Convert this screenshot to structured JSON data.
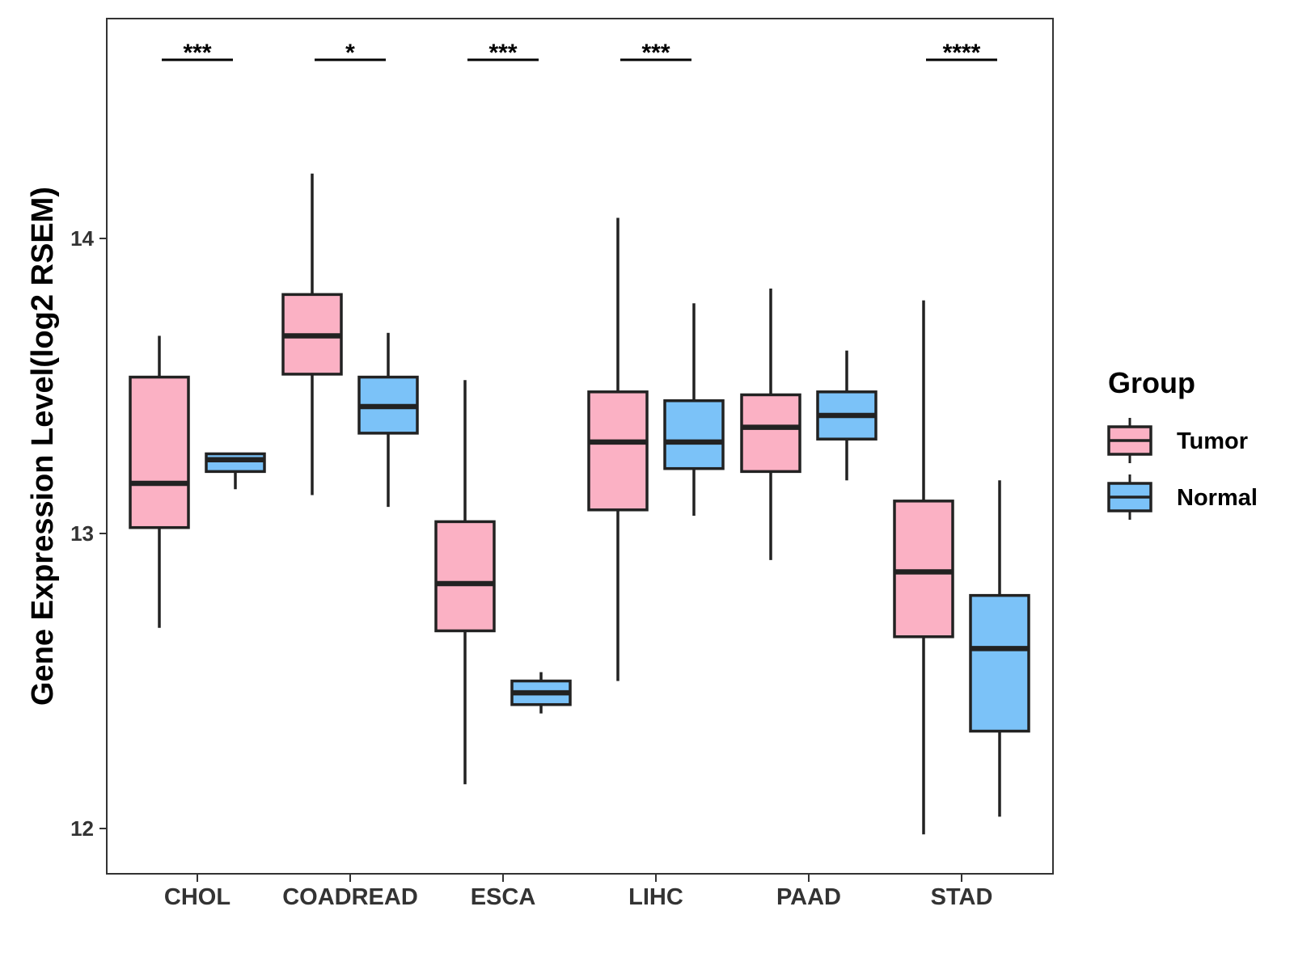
{
  "chart_data": {
    "type": "boxplot",
    "title": "",
    "xlabel": "",
    "ylabel": "Gene Expression Level(log2 RSEM)",
    "ylim": [
      11.85,
      14.75
    ],
    "yticks": [
      "12",
      "13",
      "14"
    ],
    "grid": false,
    "legend": {
      "title": "Group",
      "position": "right",
      "entries": [
        {
          "name": "Tumor",
          "color": "#FBB1C4"
        },
        {
          "name": "Normal",
          "color": "#7BC2F8"
        }
      ]
    },
    "categories": [
      "CHOL",
      "COADREAD",
      "ESCA",
      "LIHC",
      "PAAD",
      "STAD"
    ],
    "series": [
      {
        "name": "Tumor",
        "color": "#FBB1C4",
        "boxes": [
          {
            "min": 12.68,
            "q1": 13.02,
            "median": 13.17,
            "q3": 13.53,
            "max": 13.67
          },
          {
            "min": 13.13,
            "q1": 13.54,
            "median": 13.67,
            "q3": 13.81,
            "max": 14.22
          },
          {
            "min": 12.15,
            "q1": 12.67,
            "median": 12.83,
            "q3": 13.04,
            "max": 13.52
          },
          {
            "min": 12.5,
            "q1": 13.08,
            "median": 13.31,
            "q3": 13.48,
            "max": 14.07
          },
          {
            "min": 12.91,
            "q1": 13.21,
            "median": 13.36,
            "q3": 13.47,
            "max": 13.83
          },
          {
            "min": 11.98,
            "q1": 12.65,
            "median": 12.87,
            "q3": 13.11,
            "max": 13.79
          }
        ]
      },
      {
        "name": "Normal",
        "color": "#7BC2F8",
        "boxes": [
          {
            "min": 13.15,
            "q1": 13.21,
            "median": 13.25,
            "q3": 13.27,
            "max": 13.27
          },
          {
            "min": 13.09,
            "q1": 13.34,
            "median": 13.43,
            "q3": 13.53,
            "max": 13.68
          },
          {
            "min": 12.39,
            "q1": 12.42,
            "median": 12.46,
            "q3": 12.5,
            "max": 12.53
          },
          {
            "min": 13.06,
            "q1": 13.22,
            "median": 13.31,
            "q3": 13.45,
            "max": 13.78
          },
          {
            "min": 13.18,
            "q1": 13.32,
            "median": 13.4,
            "q3": 13.48,
            "max": 13.62
          },
          {
            "min": 12.04,
            "q1": 12.33,
            "median": 12.61,
            "q3": 12.79,
            "max": 13.18
          }
        ]
      }
    ],
    "annotations": [
      "***",
      "*",
      "***",
      "***",
      "",
      "****"
    ]
  }
}
